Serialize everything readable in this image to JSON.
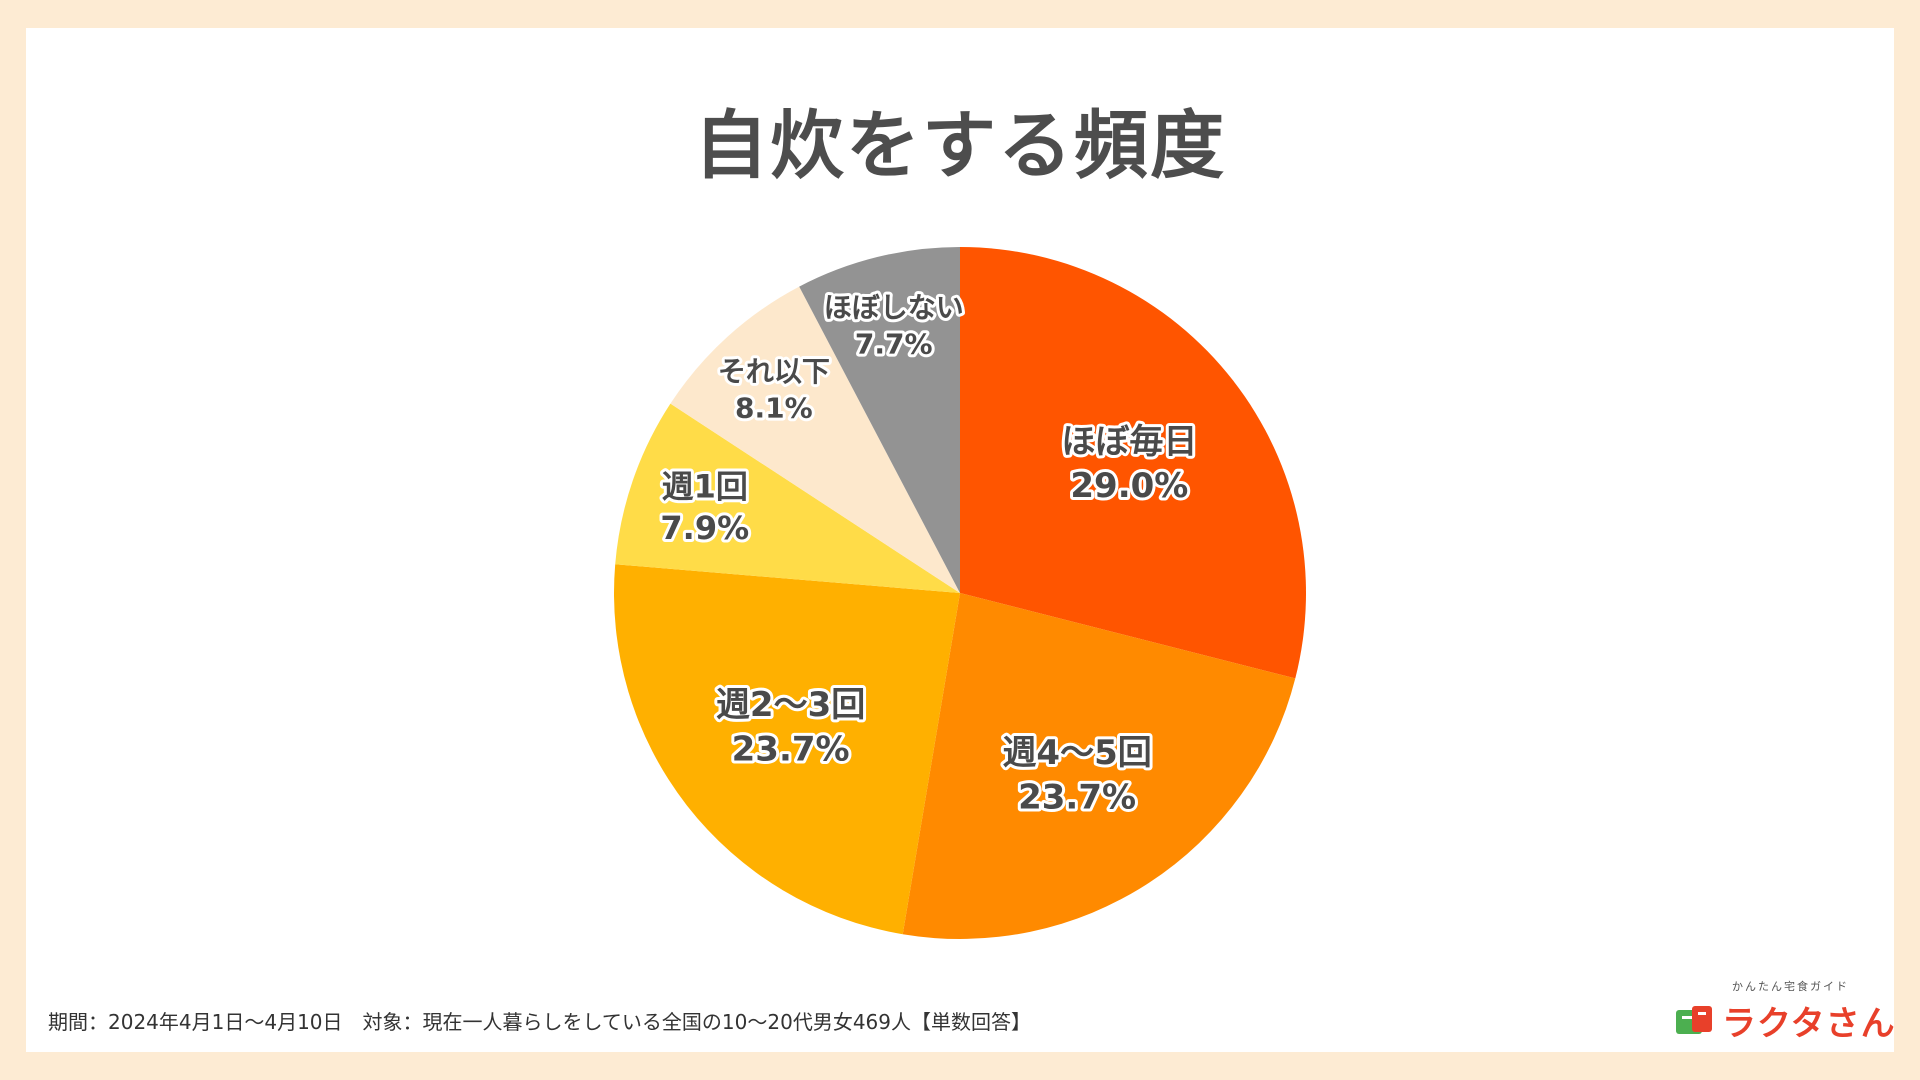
{
  "title": "自炊をする頻度",
  "footnote": "期間：2024年4月1日〜4月10日　対象：現在一人暮らしをしている全国の10〜20代男女469人【単数回答】",
  "brand": {
    "tagline": "かんたん宅食ガイド",
    "name": "ラクタさん"
  },
  "chart_data": {
    "type": "pie",
    "title": "自炊をする頻度",
    "slices": [
      {
        "label": "ほぼ毎日",
        "value": 29.0,
        "value_label": "29.0%",
        "color": "#ff5500"
      },
      {
        "label": "週4〜5回",
        "value": 23.7,
        "value_label": "23.7%",
        "color": "#ff8a00"
      },
      {
        "label": "週2〜3回",
        "value": 23.7,
        "value_label": "23.7%",
        "color": "#ffb000"
      },
      {
        "label": "週1回",
        "value": 7.9,
        "value_label": "7.9%",
        "color": "#ffdc48"
      },
      {
        "label": "それ以下",
        "value": 8.1,
        "value_label": "8.1%",
        "color": "#fde8cc"
      },
      {
        "label": "ほぼしない",
        "value": 7.7,
        "value_label": "7.7%",
        "color": "#939393"
      }
    ],
    "start_angle": "12 o'clock",
    "direction": "clockwise"
  }
}
